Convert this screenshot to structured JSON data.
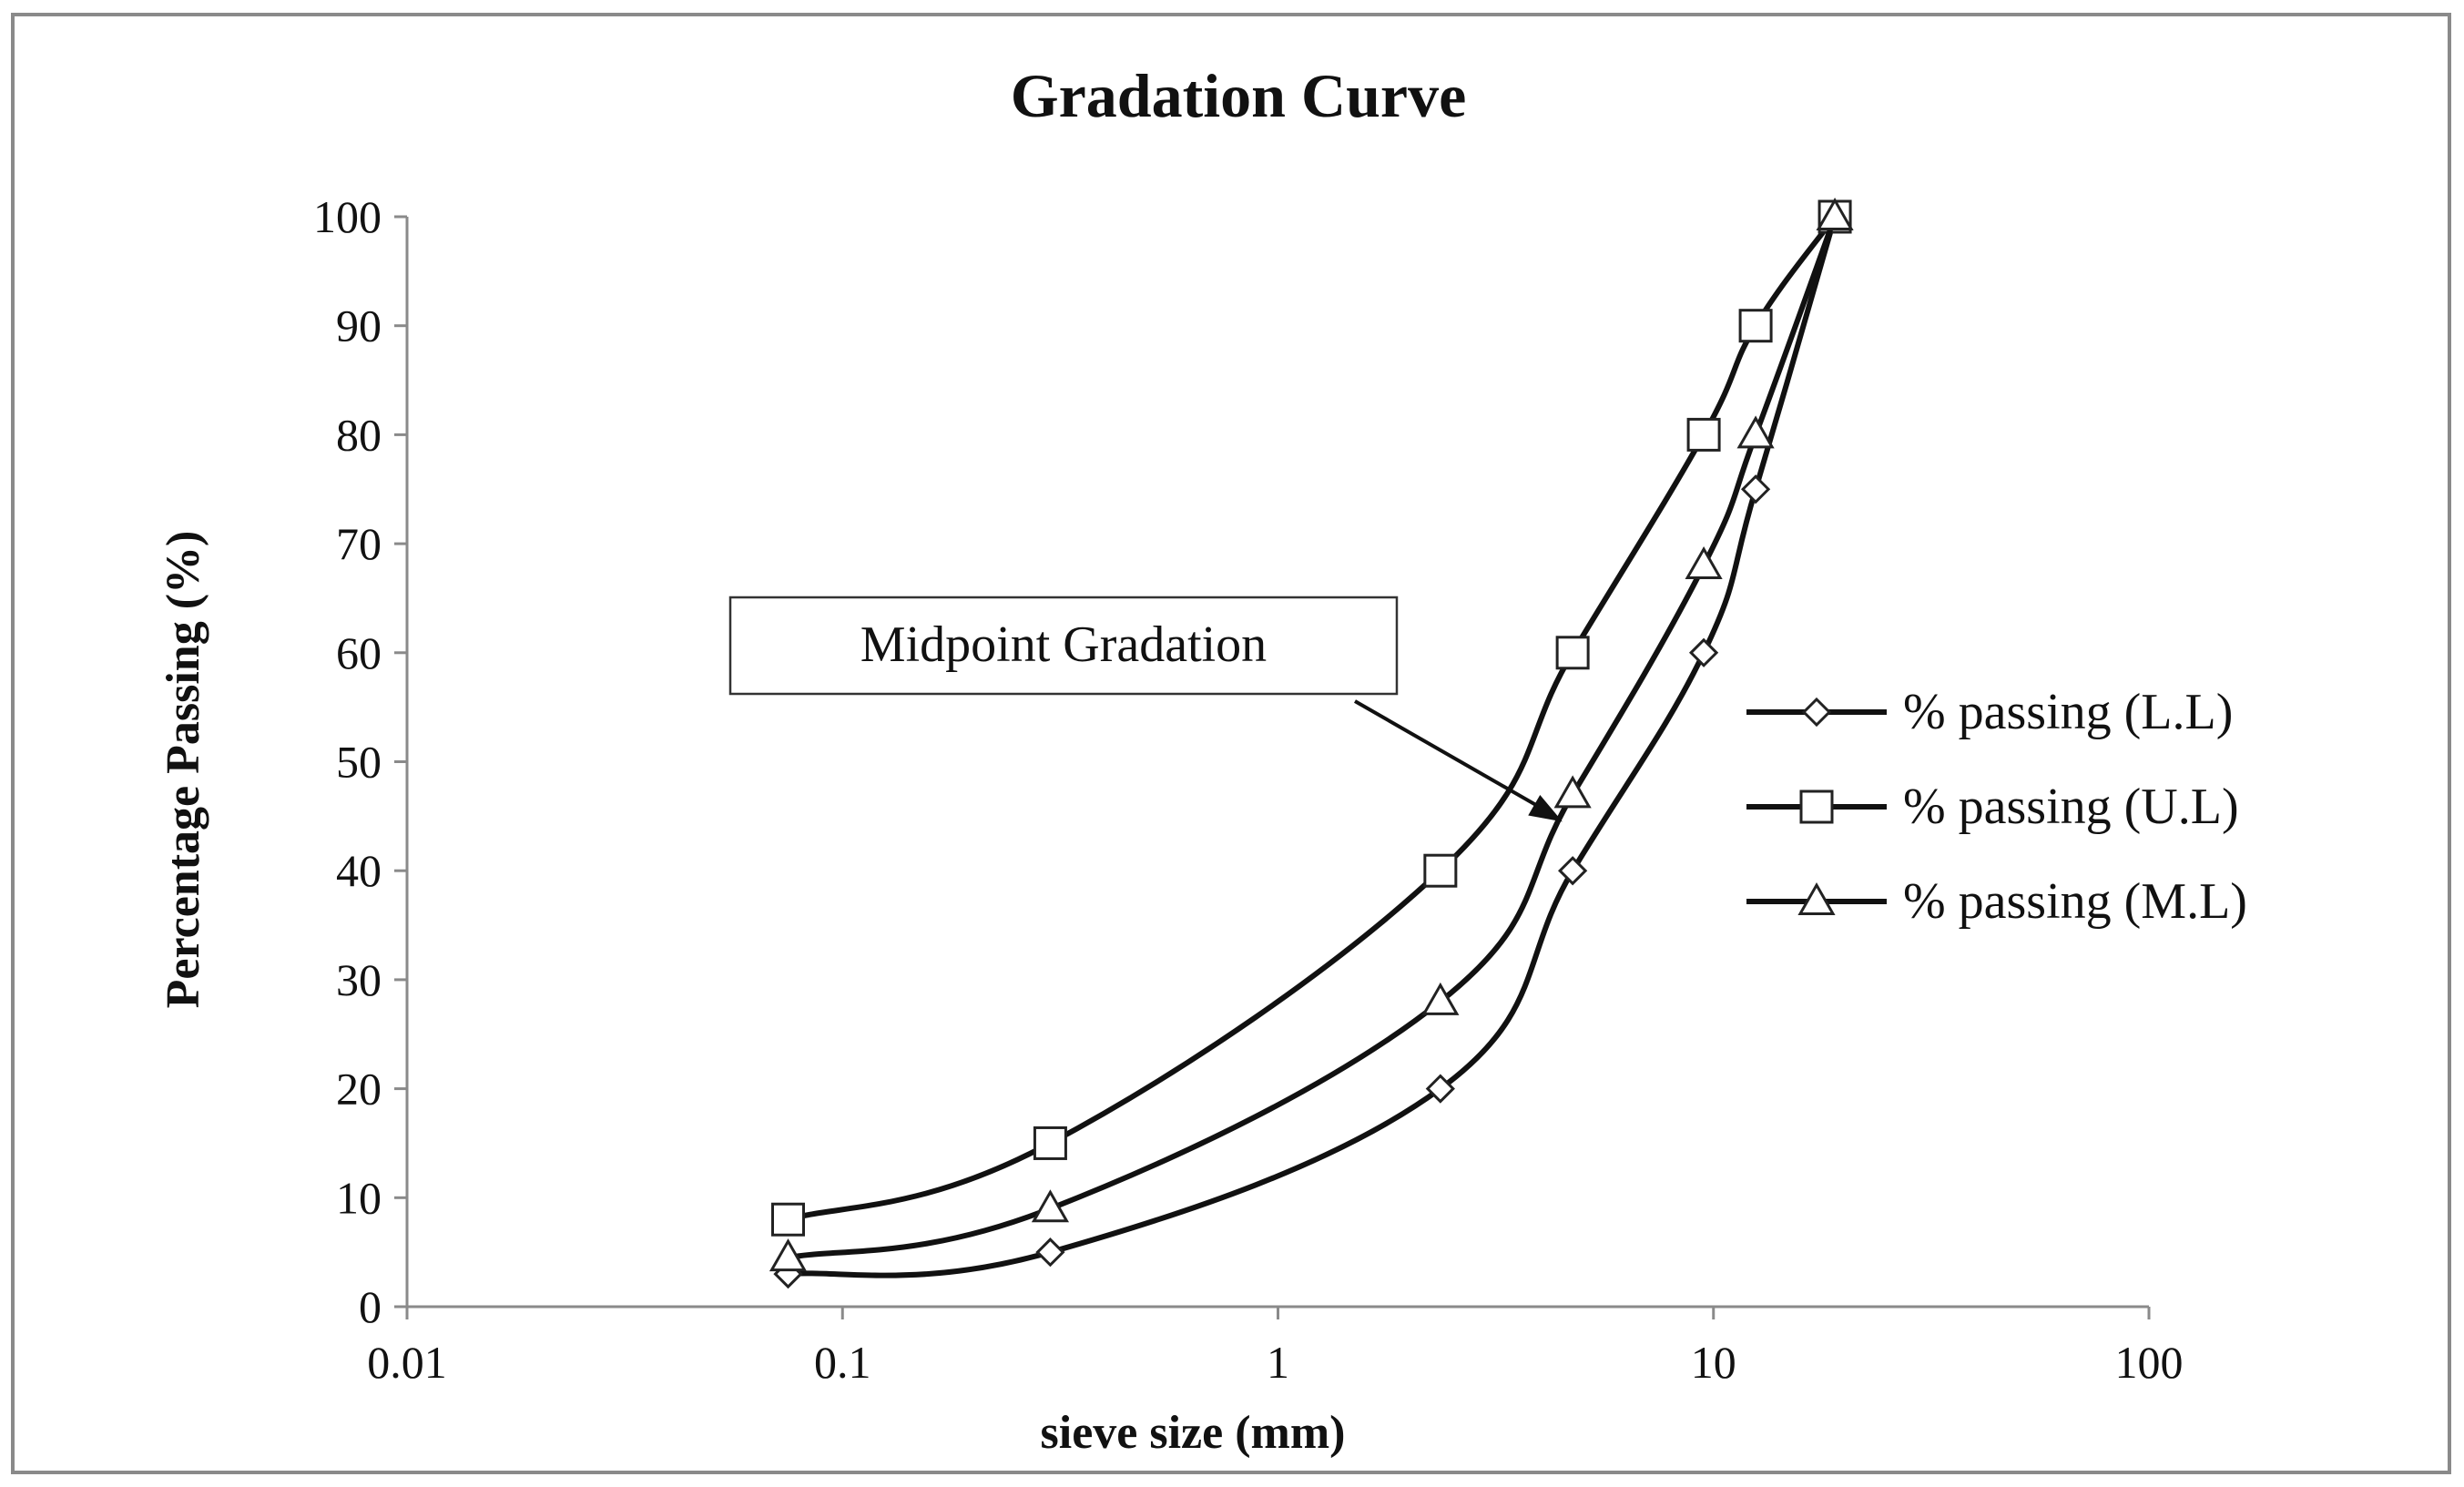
{
  "chart_data": {
    "type": "line",
    "title": "Gradation Curve",
    "xlabel": "sieve size (mm)",
    "ylabel": "Percentage Passing (%)",
    "x_scale": "log",
    "xlim": [
      0.01,
      100
    ],
    "ylim": [
      0,
      100
    ],
    "x_ticks": [
      0.01,
      0.1,
      1,
      10,
      100
    ],
    "x_tick_labels": [
      "0.01",
      "0.1",
      "1",
      "10",
      "100"
    ],
    "y_ticks": [
      0,
      10,
      20,
      30,
      40,
      50,
      60,
      70,
      80,
      90,
      100
    ],
    "y_tick_labels": [
      "0",
      "10",
      "20",
      "30",
      "40",
      "50",
      "60",
      "70",
      "80",
      "90",
      "100"
    ],
    "grid": false,
    "legend_position": "right",
    "annotation": {
      "text": "Midpoint Gradation",
      "points_to": {
        "x": 4.5,
        "y": 44
      },
      "box_anchor": {
        "x": 0.7,
        "y": 61
      }
    },
    "series": [
      {
        "name": "% passing (L.L)",
        "marker": "diamond",
        "x": [
          0.075,
          0.3,
          2.36,
          4.75,
          9.5,
          12.5,
          19
        ],
        "y": [
          3,
          5,
          20,
          40,
          60,
          75,
          100
        ]
      },
      {
        "name": "% passing (U.L)",
        "marker": "square",
        "x": [
          0.075,
          0.3,
          2.36,
          4.75,
          9.5,
          12.5,
          19
        ],
        "y": [
          8,
          15,
          40,
          60,
          80,
          90,
          100
        ]
      },
      {
        "name": "% passing (M.L)",
        "marker": "triangle",
        "x": [
          0.075,
          0.3,
          2.36,
          4.75,
          9.5,
          12.5,
          19
        ],
        "y": [
          4.5,
          9,
          28,
          47,
          68,
          80,
          100
        ]
      }
    ]
  }
}
